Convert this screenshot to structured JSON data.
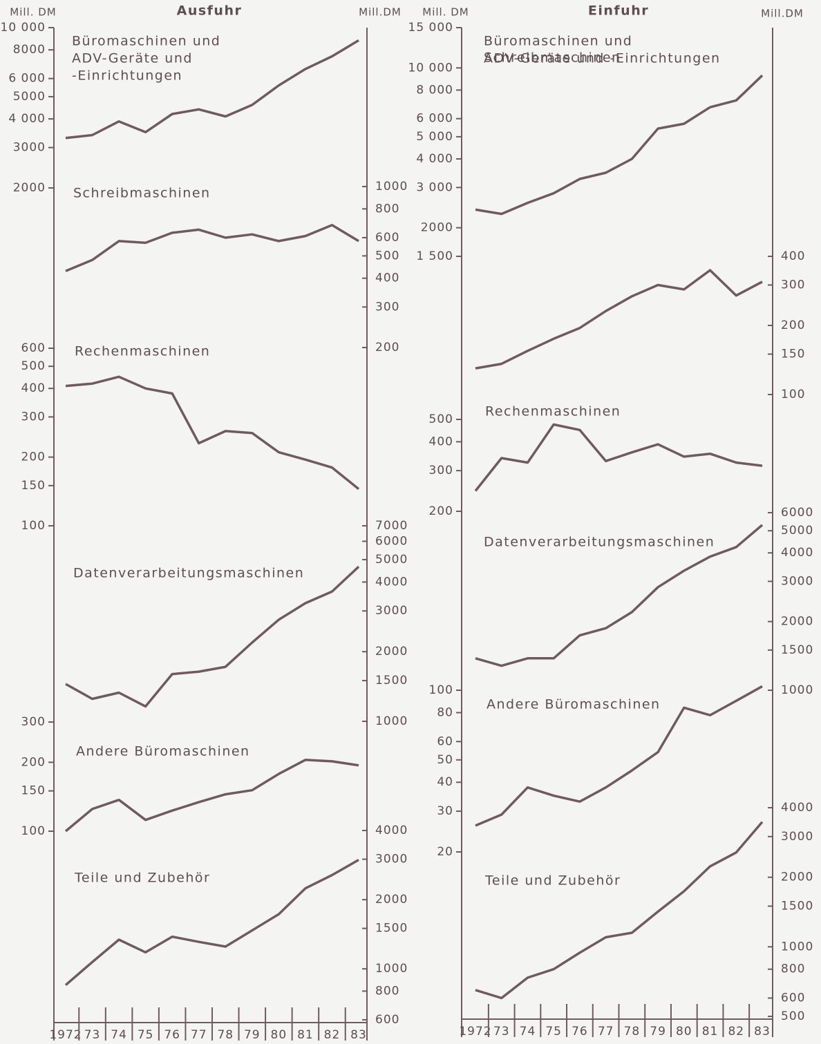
{
  "chart_data": [
    {
      "type": "line",
      "title": "Ausfuhr",
      "y_label": "Mill. DM",
      "y2_label": "Mill.DM",
      "log_scale": true,
      "color": "#6e5a5f",
      "categories": [
        "1972",
        "73",
        "74",
        "75",
        "76",
        "77",
        "78",
        "79",
        "80",
        "81",
        "82",
        "83"
      ],
      "series": [
        {
          "name": [
            "Büromaschinen und",
            "ADV-Geräte und",
            "-Einrichtungen"
          ],
          "axis": "y",
          "ylim": [
            2000,
            10000
          ],
          "yticks": [
            {
              "value": 10000,
              "label": "10 000"
            },
            {
              "value": 8000,
              "label": "8000"
            },
            {
              "value": 6000,
              "label": "6 000"
            },
            {
              "value": 5000,
              "label": "5000"
            },
            {
              "value": 4000,
              "label": "4 000"
            },
            {
              "value": 3000,
              "label": "3000"
            },
            {
              "value": 2000,
              "label": "2000"
            }
          ],
          "values": [
            3300,
            3400,
            3900,
            3500,
            4200,
            4400,
            4100,
            4600,
            5600,
            6600,
            7500,
            8800
          ]
        },
        {
          "name": [
            "Schreibmaschinen"
          ],
          "axis": "y2",
          "ylim": [
            200,
            1000
          ],
          "yticks": [
            1000,
            800,
            600,
            500,
            400,
            300,
            200
          ],
          "values": [
            430,
            480,
            580,
            570,
            630,
            650,
            600,
            620,
            580,
            610,
            680,
            580
          ]
        },
        {
          "name": [
            "Rechenmaschinen"
          ],
          "axis": "y",
          "ylim": [
            100,
            600
          ],
          "yticks": [
            600,
            500,
            400,
            300,
            200,
            150,
            100
          ],
          "values": [
            410,
            420,
            450,
            400,
            380,
            230,
            260,
            255,
            210,
            195,
            180,
            145
          ]
        },
        {
          "name": [
            "Datenverarbeitungsmaschinen"
          ],
          "axis": "y2",
          "ylim": [
            1000,
            7000
          ],
          "yticks": [
            7000,
            6000,
            5000,
            4000,
            3000,
            2000,
            1500,
            1000
          ],
          "values": [
            1450,
            1250,
            1330,
            1160,
            1600,
            1640,
            1720,
            2190,
            2750,
            3240,
            3640,
            4660
          ]
        },
        {
          "name": [
            "Andere Büromaschinen"
          ],
          "axis": "y",
          "ylim": [
            100,
            300
          ],
          "yticks": [
            300,
            200,
            150,
            100
          ],
          "values": [
            100,
            125,
            137,
            112,
            123,
            134,
            145,
            151,
            178,
            205,
            202,
            194
          ]
        },
        {
          "name": [
            "Teile und Zubehör"
          ],
          "axis": "y2",
          "ylim": [
            600,
            4000
          ],
          "yticks": [
            4000,
            3000,
            2000,
            1500,
            1000,
            800,
            600
          ],
          "values": [
            850,
            1070,
            1340,
            1180,
            1380,
            1310,
            1250,
            1470,
            1730,
            2240,
            2560,
            2980
          ]
        }
      ]
    },
    {
      "type": "line",
      "title": "Einfuhr",
      "y_label": "Mill. DM",
      "y2_label": "Mill.DM",
      "log_scale": true,
      "color": "#6e5a5f",
      "categories": [
        "1972",
        "73",
        "74",
        "75",
        "76",
        "77",
        "78",
        "79",
        "80",
        "81",
        "82",
        "83"
      ],
      "series": [
        {
          "name": [
            "Büromaschinen und",
            "ADV-Geräte und -Einrichtungen"
          ],
          "axis": "y",
          "ylim": [
            1500,
            15000
          ],
          "yticks": [
            {
              "value": 15000,
              "label": "15 000"
            },
            {
              "value": 10000,
              "label": "10 000"
            },
            {
              "value": 8000,
              "label": "8 000"
            },
            {
              "value": 6000,
              "label": "6 000"
            },
            {
              "value": 5000,
              "label": "5 000"
            },
            {
              "value": 4000,
              "label": "4 000"
            },
            {
              "value": 3000,
              "label": "3 000"
            },
            {
              "value": 2000,
              "label": "2000"
            },
            {
              "value": 1500,
              "label": "1 500"
            }
          ],
          "values": [
            2400,
            2300,
            2570,
            2830,
            3270,
            3480,
            4000,
            5430,
            5700,
            6730,
            7210,
            9270
          ]
        },
        {
          "name": [
            "Schreibmaschinen"
          ],
          "axis": "y2",
          "ylim": [
            100,
            400
          ],
          "yticks": [
            400,
            300,
            200,
            150,
            100
          ],
          "values": [
            130,
            136,
            155,
            175,
            195,
            231,
            268,
            300,
            287,
            348,
            270,
            310
          ]
        },
        {
          "name": [
            "Rechenmaschinen"
          ],
          "axis": "y",
          "ylim": [
            200,
            500
          ],
          "yticks": [
            500,
            400,
            300,
            200
          ],
          "values": [
            245,
            340,
            325,
            475,
            450,
            330,
            360,
            390,
            345,
            355,
            325,
            315
          ]
        },
        {
          "name": [
            "Datenverarbeitungsmaschinen"
          ],
          "axis": "y2",
          "ylim": [
            1000,
            6000
          ],
          "yticks": [
            6000,
            5000,
            4000,
            3000,
            2000,
            1500,
            1000
          ],
          "values": [
            1380,
            1280,
            1380,
            1380,
            1740,
            1870,
            2200,
            2830,
            3340,
            3850,
            4240,
            5300
          ]
        },
        {
          "name": [
            "Andere Büromaschinen"
          ],
          "axis": "y",
          "ylim": [
            20,
            100
          ],
          "yticks": [
            100,
            80,
            60,
            50,
            40,
            30,
            20
          ],
          "values": [
            26,
            29,
            38,
            35,
            33,
            38,
            45,
            54,
            84,
            78,
            90,
            104
          ]
        },
        {
          "name": [
            "Teile und Zubehör"
          ],
          "axis": "y2",
          "ylim": [
            500,
            4000
          ],
          "yticks": [
            4000,
            3000,
            2000,
            1500,
            1000,
            800,
            600,
            500
          ],
          "values": [
            650,
            600,
            735,
            800,
            943,
            1100,
            1150,
            1420,
            1740,
            2230,
            2560,
            3470
          ]
        }
      ]
    }
  ]
}
